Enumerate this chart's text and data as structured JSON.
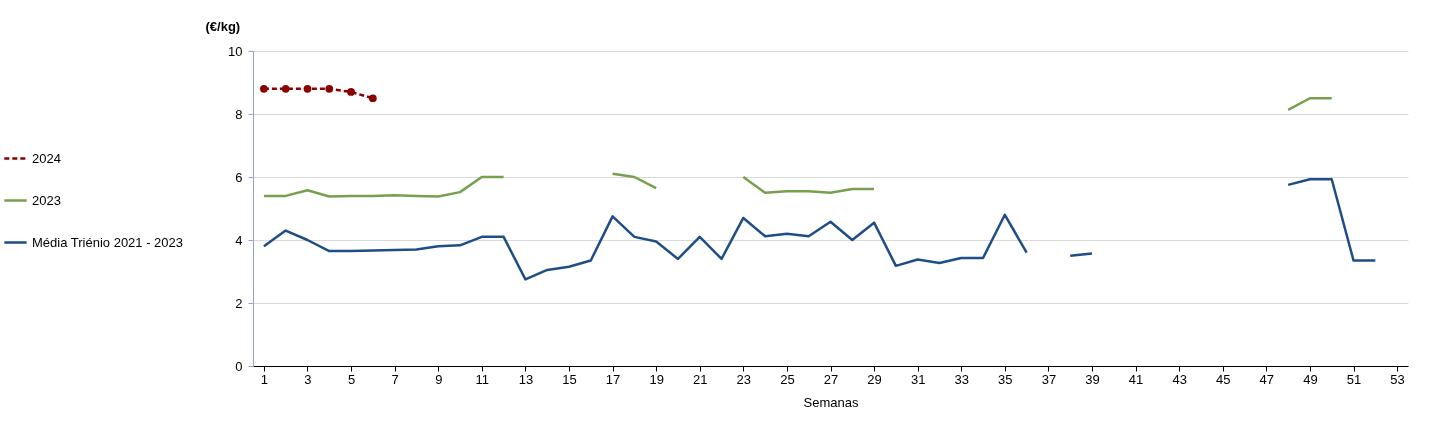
{
  "chart_data": {
    "type": "line",
    "xlabel": "Semanas",
    "ylabel": "(€/kg)",
    "x": [
      1,
      2,
      3,
      4,
      5,
      6,
      7,
      8,
      9,
      10,
      11,
      12,
      13,
      14,
      15,
      16,
      17,
      18,
      19,
      20,
      21,
      22,
      23,
      24,
      25,
      26,
      27,
      28,
      29,
      30,
      31,
      32,
      33,
      34,
      35,
      36,
      37,
      38,
      39,
      40,
      41,
      42,
      43,
      44,
      45,
      46,
      47,
      48,
      49,
      50,
      51,
      52
    ],
    "series": [
      {
        "name": "2024",
        "color": "#8b0000",
        "marker": "circle",
        "line_style": "dashed",
        "values": [
          8.8,
          8.8,
          8.8,
          8.8,
          8.7,
          8.5,
          null,
          null,
          null,
          null,
          null,
          null,
          null,
          null,
          null,
          null,
          null,
          null,
          null,
          null,
          null,
          null,
          null,
          null,
          null,
          null,
          null,
          null,
          null,
          null,
          null,
          null,
          null,
          null,
          null,
          null,
          null,
          null,
          null,
          null,
          null,
          null,
          null,
          null,
          null,
          null,
          null,
          null,
          null,
          null,
          null,
          null
        ]
      },
      {
        "name": "2023",
        "color": "#77a04e",
        "marker": "none",
        "line_style": "solid",
        "values": [
          5.4,
          5.4,
          5.58,
          5.38,
          5.4,
          5.4,
          5.42,
          5.4,
          5.38,
          5.52,
          6.0,
          6.0,
          null,
          null,
          null,
          null,
          6.1,
          6.0,
          5.65,
          null,
          null,
          null,
          6.0,
          5.5,
          5.55,
          5.55,
          5.5,
          5.62,
          5.62,
          null,
          null,
          null,
          null,
          null,
          null,
          null,
          null,
          null,
          null,
          null,
          null,
          null,
          null,
          null,
          null,
          null,
          null,
          8.13,
          8.5,
          8.5,
          null,
          null
        ]
      },
      {
        "name": "Média Triénio 2021 - 2023",
        "color": "#1f4e86",
        "marker": "none",
        "line_style": "solid",
        "values": [
          3.8,
          4.3,
          4.0,
          3.65,
          3.65,
          3.67,
          3.68,
          3.7,
          3.8,
          3.83,
          4.1,
          4.1,
          2.75,
          3.05,
          3.15,
          3.35,
          4.75,
          4.1,
          3.95,
          3.4,
          4.1,
          3.4,
          4.7,
          4.12,
          4.2,
          4.12,
          4.58,
          4.0,
          4.55,
          3.18,
          3.38,
          3.27,
          3.43,
          3.43,
          4.8,
          3.6,
          null,
          3.5,
          3.57,
          null,
          null,
          null,
          null,
          null,
          null,
          null,
          null,
          5.75,
          5.93,
          5.93,
          3.35,
          3.35
        ]
      }
    ],
    "xlim": [
      0.5,
      53.5
    ],
    "xticks": [
      1,
      3,
      5,
      7,
      9,
      11,
      13,
      15,
      17,
      19,
      21,
      23,
      25,
      27,
      29,
      31,
      33,
      35,
      37,
      39,
      41,
      43,
      45,
      47,
      49,
      51,
      53
    ],
    "ylim": [
      0,
      10
    ],
    "yticks": [
      0,
      2,
      4,
      6,
      8,
      10
    ],
    "grid": "y",
    "legend": "left"
  }
}
